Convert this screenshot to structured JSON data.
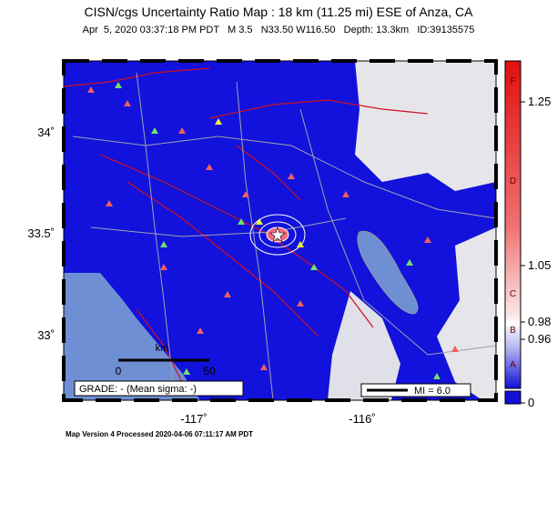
{
  "header": {
    "title": "CISN/cgs Uncertainty Ratio Map : 18 km (11.25 mi) ESE of Anza, CA",
    "subtitle": "Apr  5, 2020 03:37:18 PM PDT   M 3.5   N33.50 W116.50   Depth: 13.3km   ID:39135575"
  },
  "map": {
    "lat_labels": [
      "34˚",
      "33.5˚",
      "33˚"
    ],
    "lon_labels": [
      "-117˚",
      "-116˚"
    ],
    "scale": {
      "unit": "km",
      "start": "0",
      "end": "50"
    },
    "grade": "GRADE: - (Mean sigma: -)",
    "intensity": "MI = 6.0"
  },
  "colorbar": {
    "ticks": [
      "1.25",
      "1.05",
      "0.98",
      "0.96",
      "0"
    ],
    "grades": [
      "F",
      "D",
      "C",
      "B",
      "A"
    ]
  },
  "footer": "Map Version 4 Processed 2020-04-06 07:11:17 AM PDT"
}
